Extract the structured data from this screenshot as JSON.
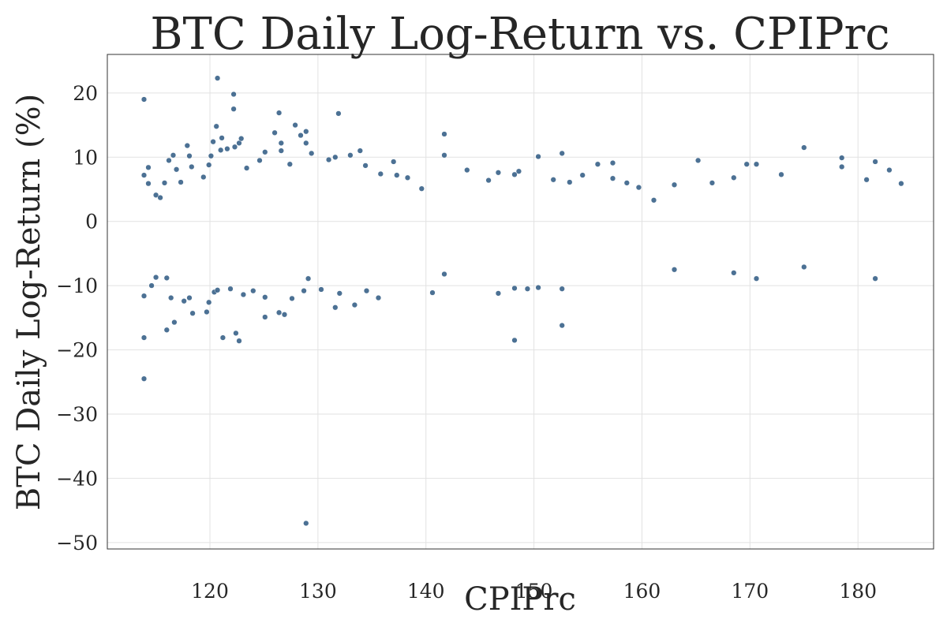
{
  "chart_data": {
    "type": "scatter",
    "title": "BTC Daily Log-Return vs. CPIPrc",
    "xlabel": "CPIPrc",
    "ylabel": "BTC Daily Log-Return (%)",
    "xlim": [
      110.5,
      187
    ],
    "ylim": [
      -51,
      26
    ],
    "xticks": [
      120,
      130,
      140,
      150,
      160,
      170,
      180
    ],
    "yticks": [
      20,
      10,
      0,
      -10,
      -20,
      -30,
      -40,
      -50
    ],
    "xtick_labels": [
      "120",
      "130",
      "140",
      "150",
      "160",
      "170",
      "180"
    ],
    "ytick_labels": [
      "20",
      "10",
      "0",
      "−10",
      "−20",
      "−30",
      "−40",
      "−50"
    ],
    "grid": true,
    "legend": "none",
    "marker_color": "#1f4e79",
    "series": [
      {
        "points": [
          [
            113.9,
            19.0
          ],
          [
            113.9,
            -18.1
          ],
          [
            113.9,
            -24.5
          ],
          [
            113.9,
            7.2
          ],
          [
            113.9,
            -11.6
          ],
          [
            114.3,
            8.4
          ],
          [
            114.3,
            5.9
          ],
          [
            114.6,
            -10.0
          ],
          [
            115.0,
            4.1
          ],
          [
            115.0,
            -8.7
          ],
          [
            115.4,
            3.7
          ],
          [
            115.8,
            6.0
          ],
          [
            116.0,
            -16.9
          ],
          [
            116.0,
            -8.8
          ],
          [
            116.2,
            9.5
          ],
          [
            116.4,
            -11.9
          ],
          [
            116.6,
            10.3
          ],
          [
            116.7,
            -15.7
          ],
          [
            116.9,
            8.1
          ],
          [
            117.3,
            6.1
          ],
          [
            117.6,
            -12.4
          ],
          [
            117.9,
            11.8
          ],
          [
            118.1,
            10.2
          ],
          [
            118.1,
            -11.9
          ],
          [
            118.3,
            8.5
          ],
          [
            118.4,
            -14.3
          ],
          [
            119.4,
            6.9
          ],
          [
            119.7,
            -14.1
          ],
          [
            119.9,
            8.8
          ],
          [
            119.9,
            -12.6
          ],
          [
            120.1,
            10.2
          ],
          [
            120.3,
            12.4
          ],
          [
            120.4,
            -11.0
          ],
          [
            120.6,
            14.8
          ],
          [
            120.7,
            22.3
          ],
          [
            120.7,
            -10.7
          ],
          [
            121.0,
            11.1
          ],
          [
            121.1,
            13.0
          ],
          [
            121.2,
            -18.1
          ],
          [
            121.6,
            11.3
          ],
          [
            121.9,
            -10.5
          ],
          [
            122.2,
            19.8
          ],
          [
            122.2,
            17.5
          ],
          [
            122.3,
            11.6
          ],
          [
            122.4,
            -17.4
          ],
          [
            122.7,
            12.2
          ],
          [
            122.7,
            -18.6
          ],
          [
            122.9,
            12.9
          ],
          [
            123.1,
            -11.4
          ],
          [
            123.4,
            8.3
          ],
          [
            124.0,
            -10.8
          ],
          [
            124.6,
            9.5
          ],
          [
            125.1,
            10.8
          ],
          [
            125.1,
            -11.8
          ],
          [
            125.1,
            -14.9
          ],
          [
            126.0,
            13.8
          ],
          [
            126.4,
            16.9
          ],
          [
            126.4,
            -14.2
          ],
          [
            126.6,
            12.2
          ],
          [
            126.6,
            11.0
          ],
          [
            126.9,
            -14.5
          ],
          [
            127.4,
            8.9
          ],
          [
            127.6,
            -12.0
          ],
          [
            127.9,
            15.0
          ],
          [
            128.4,
            13.4
          ],
          [
            128.7,
            -10.8
          ],
          [
            128.9,
            14.0
          ],
          [
            128.9,
            12.2
          ],
          [
            128.9,
            -47.0
          ],
          [
            129.1,
            -8.9
          ],
          [
            129.4,
            10.6
          ],
          [
            130.3,
            -10.6
          ],
          [
            131.0,
            9.6
          ],
          [
            131.6,
            10.0
          ],
          [
            131.6,
            -13.4
          ],
          [
            131.9,
            16.8
          ],
          [
            132.0,
            -11.2
          ],
          [
            133.0,
            10.3
          ],
          [
            133.4,
            -13.0
          ],
          [
            133.9,
            11.0
          ],
          [
            134.4,
            8.7
          ],
          [
            134.5,
            -10.8
          ],
          [
            135.6,
            -11.9
          ],
          [
            135.8,
            7.4
          ],
          [
            137.0,
            9.3
          ],
          [
            137.3,
            7.2
          ],
          [
            138.3,
            6.8
          ],
          [
            139.6,
            5.1
          ],
          [
            140.6,
            -11.1
          ],
          [
            141.7,
            13.6
          ],
          [
            141.7,
            10.3
          ],
          [
            141.7,
            -8.2
          ],
          [
            143.8,
            8.0
          ],
          [
            145.8,
            6.4
          ],
          [
            146.7,
            7.6
          ],
          [
            146.7,
            -11.2
          ],
          [
            148.2,
            7.3
          ],
          [
            148.2,
            -10.4
          ],
          [
            148.2,
            -18.5
          ],
          [
            148.6,
            7.8
          ],
          [
            149.4,
            -10.5
          ],
          [
            150.4,
            10.1
          ],
          [
            150.4,
            -10.3
          ],
          [
            151.8,
            6.5
          ],
          [
            152.6,
            10.6
          ],
          [
            152.6,
            -10.5
          ],
          [
            152.6,
            -16.2
          ],
          [
            153.3,
            6.1
          ],
          [
            154.5,
            7.2
          ],
          [
            155.9,
            8.9
          ],
          [
            157.3,
            9.1
          ],
          [
            157.3,
            6.7
          ],
          [
            158.6,
            6.0
          ],
          [
            159.7,
            5.3
          ],
          [
            161.1,
            3.3
          ],
          [
            163.0,
            5.7
          ],
          [
            163.0,
            -7.5
          ],
          [
            165.2,
            9.5
          ],
          [
            166.5,
            6.0
          ],
          [
            168.5,
            6.8
          ],
          [
            168.5,
            -8.0
          ],
          [
            169.7,
            8.9
          ],
          [
            170.6,
            8.9
          ],
          [
            170.6,
            -8.9
          ],
          [
            172.9,
            7.3
          ],
          [
            175.0,
            11.5
          ],
          [
            175.0,
            -7.1
          ],
          [
            178.5,
            9.9
          ],
          [
            178.5,
            8.5
          ],
          [
            180.8,
            6.5
          ],
          [
            181.6,
            9.3
          ],
          [
            181.6,
            -8.9
          ],
          [
            182.9,
            8.0
          ],
          [
            184.0,
            5.9
          ]
        ]
      }
    ]
  }
}
